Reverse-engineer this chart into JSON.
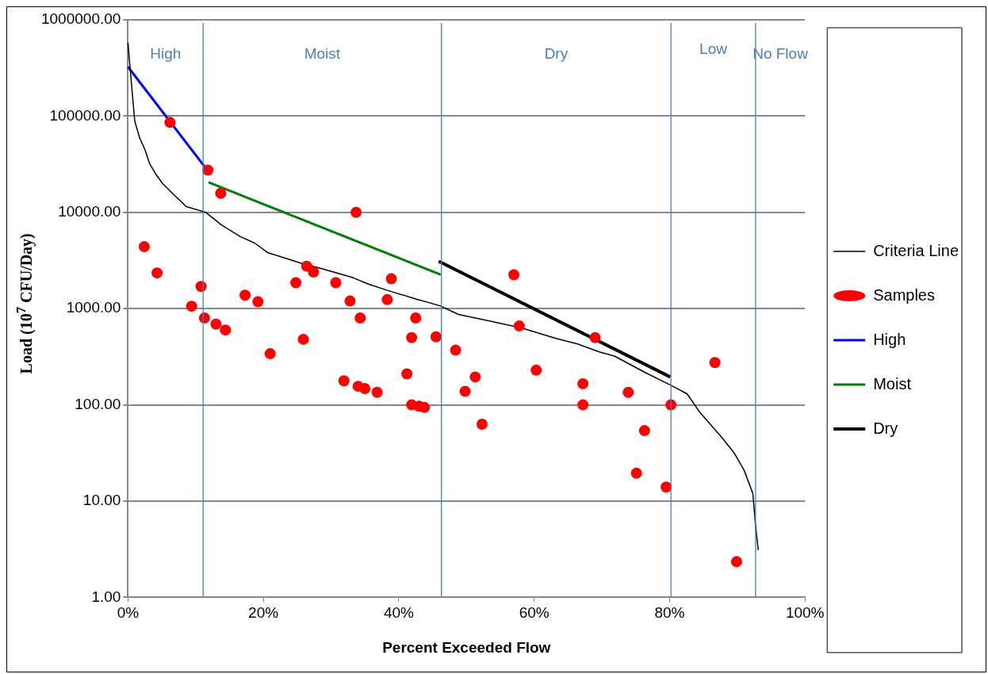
{
  "chart_data": {
    "type": "line",
    "xlabel": "Percent Exceeded Flow",
    "ylabel": "Load (10$^{7}$ CFU/Day)",
    "log": "y",
    "grid": "y",
    "legend": "right",
    "xlim": [
      0,
      100
    ],
    "xticks": [
      {
        "value": 0,
        "label": "0%"
      },
      {
        "value": 20,
        "label": "20%"
      },
      {
        "value": 40,
        "label": "40%"
      },
      {
        "value": 60,
        "label": "60%"
      },
      {
        "value": 80,
        "label": "80%"
      },
      {
        "value": 100,
        "label": "100%"
      }
    ],
    "ylim": [
      1,
      1000000
    ],
    "yticks": [
      {
        "value": 1,
        "label": "1.00"
      },
      {
        "value": 10,
        "label": "10.00"
      },
      {
        "value": 100,
        "label": "100.00"
      },
      {
        "value": 1000,
        "label": "1000.00"
      },
      {
        "value": 10000,
        "label": "10000.00"
      },
      {
        "value": 100000,
        "label": "100000.00"
      },
      {
        "value": 1000000,
        "label": "1000000.00"
      }
    ],
    "ref_lines": [
      {
        "axis": "x",
        "value": 11.1,
        "color": "#4a7ebb"
      },
      {
        "axis": "x",
        "value": 46.3,
        "color": "#4a7ebb"
      },
      {
        "axis": "x",
        "value": 80.2,
        "color": "#4a7ebb"
      },
      {
        "axis": "x",
        "value": 92.7,
        "color": "#4a7ebb"
      }
    ],
    "annotations": [
      "High",
      "Moist",
      "Dry",
      "Low",
      "No Flow"
    ],
    "series": [
      {
        "name": "Criteria Line",
        "color": "#000000",
        "marker": "none",
        "x": [
          0,
          0.4,
          1.0,
          1.7,
          2.5,
          3.2,
          4.1,
          5.1,
          6.9,
          8.6,
          11.5,
          13.8,
          16.6,
          18.7,
          20.7,
          23.5,
          25.3,
          28.6,
          33.2,
          35.5,
          38.3,
          42.5,
          46.1,
          48.8,
          53.5,
          58.1,
          63.2,
          66.4,
          69.6,
          71.9,
          76.5,
          80.2,
          82.6,
          84.4,
          87.6,
          89.5,
          91.0,
          92.3,
          92.7,
          93.1
        ],
        "values": [
          575000,
          270000,
          89000,
          60000,
          45000,
          32000,
          25000,
          20000,
          15000,
          11500,
          10000,
          7400,
          5600,
          4800,
          3800,
          3300,
          3000,
          2600,
          2100,
          1800,
          1550,
          1260,
          1070,
          870,
          740,
          630,
          490,
          430,
          355,
          320,
          215,
          160,
          130,
          85,
          47,
          32,
          21,
          12,
          5.6,
          3.1
        ]
      },
      {
        "name": "Samples",
        "type": "scatter",
        "color": "#ff0000",
        "marker": "circle",
        "x": [
          2.4,
          4.3,
          6.2,
          9.4,
          10.8,
          11.3,
          11.8,
          13.0,
          13.7,
          14.4,
          17.3,
          19.2,
          21.0,
          24.8,
          25.9,
          26.4,
          27.4,
          30.7,
          31.9,
          32.8,
          33.7,
          34.0,
          34.3,
          35.0,
          36.8,
          38.3,
          38.9,
          41.2,
          41.9,
          41.9,
          42.5,
          43.0,
          43.8,
          45.5,
          48.4,
          49.8,
          51.3,
          52.3,
          57.0,
          57.8,
          60.3,
          67.2,
          67.2,
          69.0,
          73.9,
          75.1,
          76.3,
          79.5,
          80.2,
          86.7,
          89.9
        ],
        "values": [
          4400,
          2350,
          86000,
          1060,
          1700,
          800,
          27500,
          690,
          15800,
          600,
          1380,
          1180,
          340,
          1860,
          480,
          2760,
          2400,
          1860,
          178,
          1200,
          10000,
          156,
          800,
          148,
          135,
          1240,
          2040,
          210,
          500,
          100,
          800,
          97,
          94,
          510,
          370,
          138,
          195,
          63,
          2250,
          660,
          230,
          166,
          100,
          500,
          135,
          19.5,
          54,
          14,
          100,
          275,
          2.35
        ]
      },
      {
        "name": "High",
        "color": "#0000ff",
        "marker": "none",
        "x": [
          0,
          11.3
        ],
        "values": [
          325000,
          30000
        ]
      },
      {
        "name": "Moist",
        "color": "#008000",
        "marker": "none",
        "x": [
          11.9,
          46.2
        ],
        "values": [
          20500,
          2250
        ]
      },
      {
        "name": "Dry",
        "color": "#000000",
        "marker": "none",
        "x": [
          45.9,
          80.1
        ],
        "values": [
          3100,
          195
        ]
      }
    ]
  }
}
